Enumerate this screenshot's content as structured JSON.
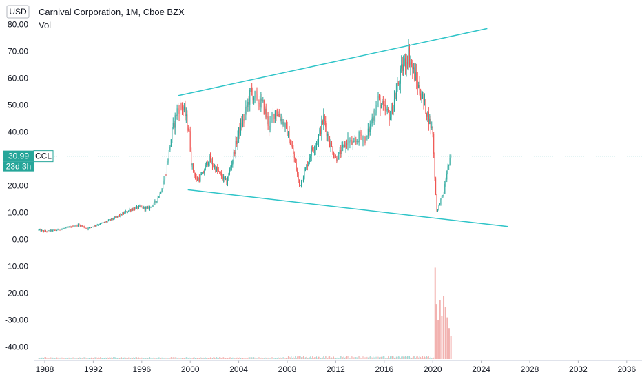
{
  "currency_label": "USD",
  "chart_data": {
    "type": "candlestick",
    "title": "Carnival Corporation, 1M, Cboe BZX",
    "subtitle": "Vol",
    "y_ticks": [
      "80.00",
      "70.00",
      "60.00",
      "50.00",
      "40.00",
      "30.00",
      "20.00",
      "10.00",
      "0.00",
      "-10.00",
      "-20.00",
      "-30.00",
      "-40.00"
    ],
    "y_tick_values": [
      80,
      70,
      60,
      50,
      40,
      30,
      20,
      10,
      0,
      -10,
      -20,
      -30,
      -40
    ],
    "x_ticks": [
      "1988",
      "1992",
      "1996",
      "2000",
      "2004",
      "2008",
      "2012",
      "2016",
      "2020",
      "2024",
      "2028",
      "2032",
      "2036"
    ],
    "x_tick_values": [
      1988,
      1992,
      1996,
      2000,
      2004,
      2008,
      2012,
      2016,
      2020,
      2024,
      2028,
      2032,
      2036
    ],
    "ylim": [
      -44,
      82
    ],
    "xlim": [
      1987.2,
      2037.0
    ],
    "price_keypoints": [
      [
        1987.5,
        3.5
      ],
      [
        1988.0,
        3.0
      ],
      [
        1989.0,
        3.5
      ],
      [
        1990.0,
        4.5
      ],
      [
        1990.8,
        5.5
      ],
      [
        1991.5,
        4.0
      ],
      [
        1992.0,
        5.0
      ],
      [
        1993.0,
        6.5
      ],
      [
        1994.0,
        8.5
      ],
      [
        1995.0,
        11.0
      ],
      [
        1995.8,
        12.0
      ],
      [
        1996.5,
        11.5
      ],
      [
        1997.0,
        13.0
      ],
      [
        1997.5,
        17.0
      ],
      [
        1998.0,
        25.0
      ],
      [
        1998.5,
        40.0
      ],
      [
        1998.9,
        48.0
      ],
      [
        1999.3,
        50.0
      ],
      [
        1999.6,
        46.0
      ],
      [
        1999.9,
        40.0
      ],
      [
        2000.1,
        28.0
      ],
      [
        2000.5,
        22.0
      ],
      [
        2001.0,
        24.0
      ],
      [
        2001.5,
        30.0
      ],
      [
        2002.0,
        27.0
      ],
      [
        2002.5,
        24.0
      ],
      [
        2003.0,
        21.0
      ],
      [
        2003.5,
        30.0
      ],
      [
        2004.0,
        40.0
      ],
      [
        2004.5,
        46.0
      ],
      [
        2005.0,
        55.0
      ],
      [
        2005.5,
        52.0
      ],
      [
        2006.0,
        50.0
      ],
      [
        2006.5,
        42.0
      ],
      [
        2007.0,
        48.0
      ],
      [
        2007.5,
        45.0
      ],
      [
        2008.0,
        40.0
      ],
      [
        2008.5,
        32.0
      ],
      [
        2009.0,
        20.0
      ],
      [
        2009.5,
        26.0
      ],
      [
        2010.0,
        33.0
      ],
      [
        2010.5,
        37.0
      ],
      [
        2011.0,
        45.0
      ],
      [
        2011.5,
        36.0
      ],
      [
        2012.0,
        30.0
      ],
      [
        2012.5,
        33.0
      ],
      [
        2013.0,
        37.0
      ],
      [
        2013.5,
        35.0
      ],
      [
        2014.0,
        39.0
      ],
      [
        2014.5,
        37.0
      ],
      [
        2015.0,
        45.0
      ],
      [
        2015.5,
        52.0
      ],
      [
        2016.0,
        48.0
      ],
      [
        2016.5,
        46.0
      ],
      [
        2017.0,
        55.0
      ],
      [
        2017.5,
        64.0
      ],
      [
        2018.0,
        69.0
      ],
      [
        2018.3,
        64.0
      ],
      [
        2018.8,
        57.0
      ],
      [
        2019.2,
        52.0
      ],
      [
        2019.6,
        46.0
      ],
      [
        2020.0,
        40.0
      ],
      [
        2020.2,
        20.0
      ],
      [
        2020.35,
        10.0
      ],
      [
        2020.6,
        14.0
      ],
      [
        2020.9,
        17.0
      ],
      [
        2021.2,
        26.0
      ],
      [
        2021.5,
        30.5
      ]
    ],
    "trendline_upper": [
      [
        1999.0,
        53.5
      ],
      [
        2024.5,
        78.5
      ]
    ],
    "trendline_lower": [
      [
        1999.8,
        18.5
      ],
      [
        2026.2,
        4.8
      ]
    ],
    "last_price": 30.99,
    "last_price_label": "30.99",
    "symbol_label": "CCL",
    "countdown_label": "23d 3h",
    "volume_spikes": [
      [
        2020.2,
        -10.5
      ],
      [
        2020.3,
        -24.0
      ],
      [
        2020.45,
        -30.0
      ],
      [
        2020.6,
        -22.5
      ],
      [
        2020.75,
        -28.5
      ],
      [
        2020.9,
        -21.0
      ],
      [
        2021.05,
        -25.0
      ],
      [
        2021.2,
        -29.0
      ],
      [
        2021.35,
        -33.0
      ],
      [
        2021.5,
        -36.0
      ]
    ],
    "colors": {
      "up": "#26a69a",
      "down": "#ef5350",
      "trendline": "#2ec4c8",
      "price_line": "#2aa8a8",
      "label_bg": "#26a69a",
      "text": "#131722"
    },
    "grid": false
  }
}
